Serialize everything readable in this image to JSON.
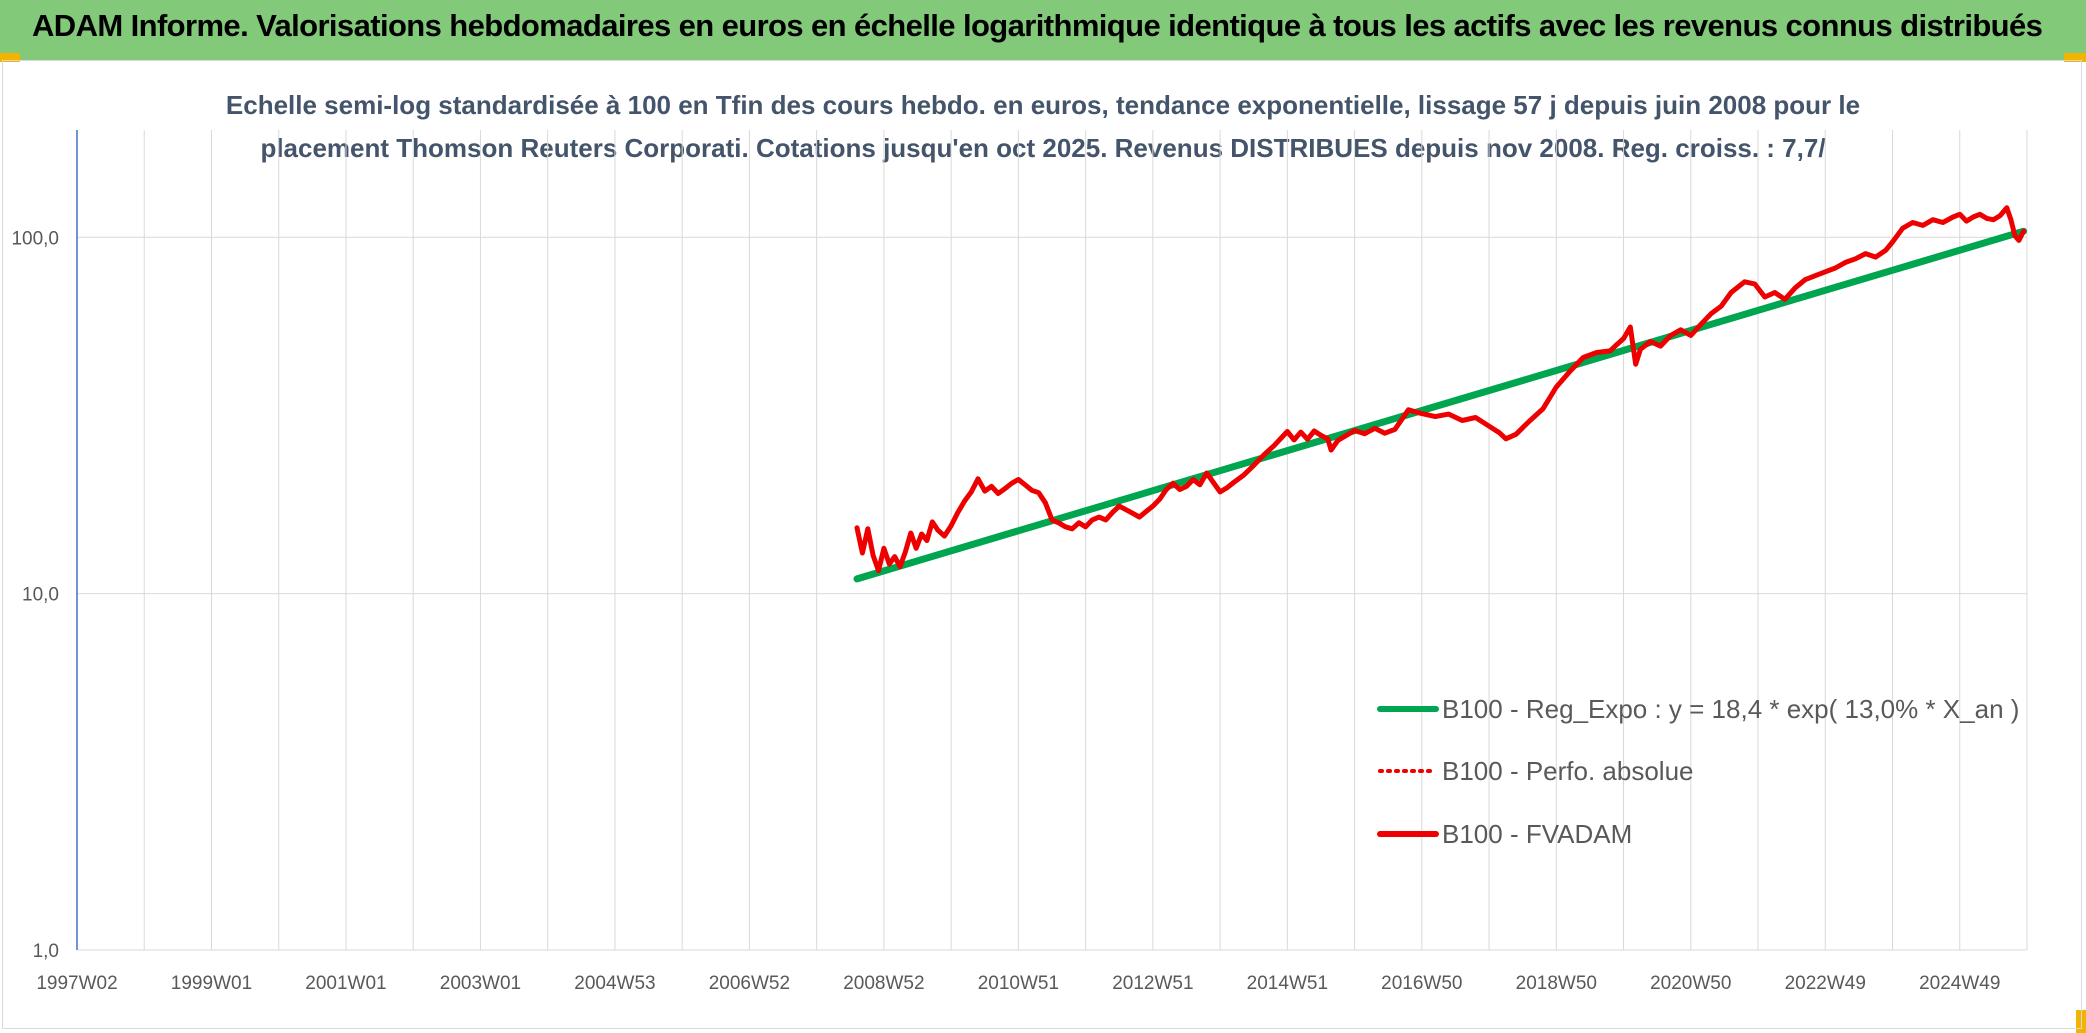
{
  "header": {
    "title": "ADAM Informe. Valorisations hebdomadaires en euros en échelle logarithmique identique à tous les actifs avec les revenus connus distribués"
  },
  "colors": {
    "header_bg": "#82c97a",
    "corner_accent": "#f2b400",
    "trend_line": "#00a54f",
    "price_line": "#ee0000",
    "subtitle": "#44546a",
    "grid": "#d9d9d9",
    "y_axis": "#4472c4"
  },
  "chart_data": {
    "type": "line",
    "subtitle_lines": [
      "Echelle semi-log standardisée à 100 en Tfin des cours hebdo. en euros, tendance exponentielle, lissage 57 j depuis juin 2008 pour le",
      "placement Thomson Reuters Corporati. Cotations jusqu'en oct 2025. Revenus DISTRIBUES depuis nov 2008. Reg. croiss. : 7,7/"
    ],
    "y_scale": "log",
    "ylim": [
      1,
      200
    ],
    "y_ticks": [
      {
        "value": 1,
        "label": "1,0"
      },
      {
        "value": 10,
        "label": "10,0"
      },
      {
        "value": 100,
        "label": "100,0"
      }
    ],
    "x_range": [
      1997.0,
      2026.0
    ],
    "x_ticks": [
      {
        "value": 1997.0,
        "label": "1997W02"
      },
      {
        "value": 1999.0,
        "label": "1999W01"
      },
      {
        "value": 2001.0,
        "label": "2001W01"
      },
      {
        "value": 2003.0,
        "label": "2003W01"
      },
      {
        "value": 2005.0,
        "label": "2004W53"
      },
      {
        "value": 2007.0,
        "label": "2006W52"
      },
      {
        "value": 2009.0,
        "label": "2008W52"
      },
      {
        "value": 2011.0,
        "label": "2010W51"
      },
      {
        "value": 2013.0,
        "label": "2012W51"
      },
      {
        "value": 2015.0,
        "label": "2014W51"
      },
      {
        "value": 2017.0,
        "label": "2016W50"
      },
      {
        "value": 2019.0,
        "label": "2018W50"
      },
      {
        "value": 2021.0,
        "label": "2020W50"
      },
      {
        "value": 2023.0,
        "label": "2022W49"
      },
      {
        "value": 2025.0,
        "label": "2024W49"
      }
    ],
    "grid_vertical": true,
    "grid_horizontal": true,
    "legend_position": "bottom-right",
    "series": [
      {
        "name": "B100 - Reg_Expo : y = 18,4 * exp( 13,0% *  X_an )",
        "color": "#00a54f",
        "style": "solid",
        "points": [
          [
            2008.6,
            11.0
          ],
          [
            2025.95,
            104
          ]
        ]
      },
      {
        "name": "B100 - Perfo. absolue",
        "color": "#ee0000",
        "style": "dotted",
        "points": []
      },
      {
        "name": "B100 - FVADAM",
        "color": "#ee0000",
        "style": "solid",
        "points": [
          [
            2008.6,
            15.3
          ],
          [
            2008.68,
            13.0
          ],
          [
            2008.76,
            15.2
          ],
          [
            2008.84,
            12.8
          ],
          [
            2008.92,
            11.6
          ],
          [
            2009.0,
            13.4
          ],
          [
            2009.08,
            12.1
          ],
          [
            2009.16,
            12.7
          ],
          [
            2009.24,
            11.9
          ],
          [
            2009.32,
            13.1
          ],
          [
            2009.4,
            14.8
          ],
          [
            2009.48,
            13.4
          ],
          [
            2009.56,
            14.7
          ],
          [
            2009.64,
            14.1
          ],
          [
            2009.72,
            15.9
          ],
          [
            2009.8,
            15.1
          ],
          [
            2009.9,
            14.5
          ],
          [
            2010.0,
            15.5
          ],
          [
            2010.1,
            16.9
          ],
          [
            2010.2,
            18.2
          ],
          [
            2010.3,
            19.3
          ],
          [
            2010.4,
            21.0
          ],
          [
            2010.5,
            19.4
          ],
          [
            2010.6,
            20.0
          ],
          [
            2010.7,
            19.1
          ],
          [
            2010.8,
            19.7
          ],
          [
            2010.9,
            20.4
          ],
          [
            2011.0,
            20.9
          ],
          [
            2011.1,
            20.2
          ],
          [
            2011.2,
            19.5
          ],
          [
            2011.3,
            19.2
          ],
          [
            2011.4,
            18.0
          ],
          [
            2011.5,
            16.1
          ],
          [
            2011.6,
            15.8
          ],
          [
            2011.7,
            15.4
          ],
          [
            2011.8,
            15.2
          ],
          [
            2011.9,
            15.8
          ],
          [
            2012.0,
            15.4
          ],
          [
            2012.1,
            16.1
          ],
          [
            2012.2,
            16.4
          ],
          [
            2012.3,
            16.1
          ],
          [
            2012.4,
            16.9
          ],
          [
            2012.5,
            17.6
          ],
          [
            2012.6,
            17.2
          ],
          [
            2012.7,
            16.8
          ],
          [
            2012.8,
            16.4
          ],
          [
            2012.9,
            17.0
          ],
          [
            2013.0,
            17.6
          ],
          [
            2013.1,
            18.4
          ],
          [
            2013.2,
            19.6
          ],
          [
            2013.3,
            20.4
          ],
          [
            2013.4,
            19.6
          ],
          [
            2013.5,
            20.0
          ],
          [
            2013.6,
            20.9
          ],
          [
            2013.7,
            20.2
          ],
          [
            2013.8,
            21.8
          ],
          [
            2013.9,
            20.5
          ],
          [
            2014.0,
            19.3
          ],
          [
            2014.1,
            19.8
          ],
          [
            2014.2,
            20.5
          ],
          [
            2014.35,
            21.5
          ],
          [
            2014.5,
            22.9
          ],
          [
            2014.65,
            24.5
          ],
          [
            2014.8,
            26.0
          ],
          [
            2015.0,
            28.5
          ],
          [
            2015.1,
            27.0
          ],
          [
            2015.2,
            28.4
          ],
          [
            2015.3,
            27.1
          ],
          [
            2015.4,
            28.6
          ],
          [
            2015.5,
            27.8
          ],
          [
            2015.6,
            27.2
          ],
          [
            2015.65,
            25.3
          ],
          [
            2015.75,
            26.9
          ],
          [
            2015.85,
            27.6
          ],
          [
            2016.0,
            28.7
          ],
          [
            2016.15,
            28.1
          ],
          [
            2016.3,
            29.1
          ],
          [
            2016.45,
            28.2
          ],
          [
            2016.6,
            28.9
          ],
          [
            2016.8,
            32.8
          ],
          [
            2017.0,
            32.0
          ],
          [
            2017.2,
            31.4
          ],
          [
            2017.4,
            31.9
          ],
          [
            2017.6,
            30.6
          ],
          [
            2017.8,
            31.2
          ],
          [
            2018.0,
            29.5
          ],
          [
            2018.15,
            28.3
          ],
          [
            2018.25,
            27.2
          ],
          [
            2018.4,
            28.0
          ],
          [
            2018.6,
            30.5
          ],
          [
            2018.8,
            33.0
          ],
          [
            2019.0,
            38.0
          ],
          [
            2019.2,
            42.0
          ],
          [
            2019.4,
            46.0
          ],
          [
            2019.6,
            47.5
          ],
          [
            2019.8,
            48.0
          ],
          [
            2019.9,
            50.0
          ],
          [
            2020.0,
            52.0
          ],
          [
            2020.1,
            56.0
          ],
          [
            2020.18,
            44.0
          ],
          [
            2020.25,
            48.5
          ],
          [
            2020.4,
            51.0
          ],
          [
            2020.55,
            49.5
          ],
          [
            2020.7,
            53.0
          ],
          [
            2020.85,
            55.0
          ],
          [
            2021.0,
            53.0
          ],
          [
            2021.15,
            57.0
          ],
          [
            2021.3,
            61.0
          ],
          [
            2021.45,
            64.0
          ],
          [
            2021.6,
            70.0
          ],
          [
            2021.8,
            75.0
          ],
          [
            2021.95,
            74.0
          ],
          [
            2022.1,
            68.0
          ],
          [
            2022.25,
            70.0
          ],
          [
            2022.4,
            67.0
          ],
          [
            2022.55,
            72.0
          ],
          [
            2022.7,
            76.0
          ],
          [
            2022.85,
            78.0
          ],
          [
            2023.0,
            80.0
          ],
          [
            2023.15,
            82.0
          ],
          [
            2023.3,
            85.0
          ],
          [
            2023.45,
            87.0
          ],
          [
            2023.6,
            90.0
          ],
          [
            2023.75,
            88.0
          ],
          [
            2023.9,
            92.0
          ],
          [
            2024.0,
            97.0
          ],
          [
            2024.15,
            106.0
          ],
          [
            2024.3,
            110.0
          ],
          [
            2024.45,
            108.0
          ],
          [
            2024.6,
            112.0
          ],
          [
            2024.75,
            110.0
          ],
          [
            2024.9,
            114.0
          ],
          [
            2025.0,
            116.0
          ],
          [
            2025.1,
            111.0
          ],
          [
            2025.2,
            114.0
          ],
          [
            2025.3,
            116.0
          ],
          [
            2025.4,
            113.0
          ],
          [
            2025.5,
            112.0
          ],
          [
            2025.6,
            115.0
          ],
          [
            2025.7,
            121.0
          ],
          [
            2025.76,
            112.0
          ],
          [
            2025.82,
            101.0
          ],
          [
            2025.88,
            98.0
          ],
          [
            2025.95,
            104.0
          ]
        ]
      }
    ]
  }
}
